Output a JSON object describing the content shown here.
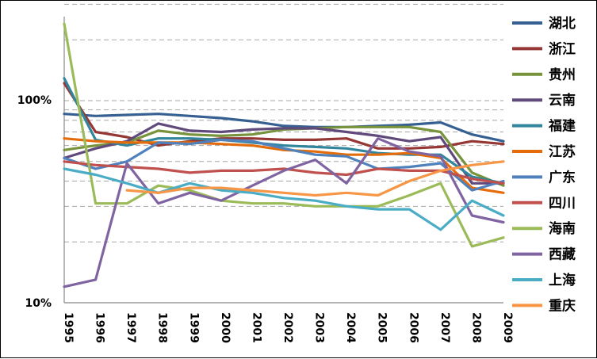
{
  "chart_data": {
    "type": "line",
    "y_scale": "log",
    "y_range": [
      10,
      300
    ],
    "y_tick_labels": [
      "10%",
      "100%"
    ],
    "x": [
      "1995",
      "1996",
      "1997",
      "1998",
      "1999",
      "2000",
      "2001",
      "2002",
      "2003",
      "2004",
      "2005",
      "2006",
      "2007",
      "2008",
      "2009"
    ],
    "grid": true,
    "legend_position": "right",
    "series": [
      {
        "name": "湖北",
        "color": "#376092",
        "values": [
          86,
          84,
          85,
          86,
          84,
          82,
          79,
          75,
          74,
          74,
          75,
          76,
          78,
          68,
          63
        ]
      },
      {
        "name": "浙江",
        "color": "#953735",
        "values": [
          122,
          70,
          66,
          60,
          63,
          65,
          65,
          64,
          64,
          65,
          58,
          58,
          59,
          63,
          61
        ]
      },
      {
        "name": "贵州",
        "color": "#77933c",
        "values": [
          57,
          60,
          62,
          71,
          68,
          67,
          68,
          72,
          73,
          74,
          74,
          74,
          70,
          44,
          38
        ]
      },
      {
        "name": "云南",
        "color": "#604a7b",
        "values": [
          52,
          58,
          63,
          77,
          71,
          70,
          72,
          73,
          73,
          70,
          67,
          63,
          66,
          39,
          39
        ]
      },
      {
        "name": "福建",
        "color": "#31859c",
        "values": [
          129,
          64,
          60,
          65,
          65,
          64,
          62,
          60,
          59,
          58,
          55,
          54,
          54,
          42,
          39
        ]
      },
      {
        "name": "江苏",
        "color": "#e46c0a",
        "values": [
          65,
          63,
          62,
          62,
          62,
          61,
          60,
          57,
          56,
          54,
          54,
          55,
          52,
          37,
          35
        ]
      },
      {
        "name": "广东",
        "color": "#4f81bd",
        "values": [
          52,
          46,
          50,
          62,
          61,
          64,
          63,
          58,
          54,
          53,
          46,
          47,
          49,
          36,
          40
        ]
      },
      {
        "name": "四川",
        "color": "#c0504d",
        "values": [
          50,
          48,
          47,
          46,
          44,
          45,
          45,
          46,
          44,
          43,
          46,
          45,
          45,
          41,
          39
        ]
      },
      {
        "name": "海南",
        "color": "#9bbb59",
        "values": [
          240,
          31,
          31,
          38,
          36,
          32,
          31,
          31,
          30,
          30,
          30,
          34,
          39,
          19,
          21
        ]
      },
      {
        "name": "西藏",
        "color": "#8064a2",
        "values": [
          12,
          13,
          49,
          31,
          35,
          32,
          38,
          45,
          51,
          39,
          65,
          56,
          53,
          27,
          25
        ]
      },
      {
        "name": "上海",
        "color": "#4bacc6",
        "values": [
          46,
          43,
          39,
          35,
          39,
          36,
          35,
          33,
          32,
          30,
          29,
          29,
          23,
          32,
          27
        ]
      },
      {
        "name": "重庆",
        "color": "#f79646",
        "values": [
          null,
          null,
          36,
          35,
          37,
          37,
          36,
          35,
          34,
          35,
          34,
          40,
          45,
          48,
          50
        ]
      }
    ]
  }
}
